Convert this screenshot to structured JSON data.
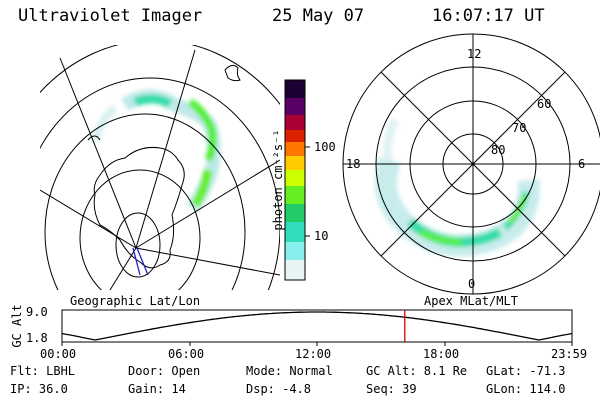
{
  "header": {
    "instrument": "Ultraviolet Imager",
    "date": "25 May 07",
    "time": "16:07:17 UT"
  },
  "colorbar": {
    "label": "photon cm⁻²s⁻¹",
    "ticks": [
      "100",
      "10"
    ],
    "scale": "log",
    "colors": [
      "#1a0033",
      "#5a0066",
      "#aa0033",
      "#dd2200",
      "#ff7700",
      "#ffcc00",
      "#ccff00",
      "#66ee22",
      "#22cc66",
      "#33ddbb",
      "#88eeee",
      "#e8f4f4"
    ]
  },
  "left_map": {
    "label": "Geographic Lat/Lon",
    "auroral_color": "#33dd55"
  },
  "right_map": {
    "label": "Apex MLat/MLT",
    "mlt_labels": [
      "12",
      "18",
      "6",
      "0"
    ],
    "mlat_labels": [
      "60",
      "70",
      "80"
    ]
  },
  "altitude_plot": {
    "ylabel": "GC Alt",
    "y_top": "9.0",
    "y_bottom": "1.8",
    "x_ticks": [
      "00:00",
      "06:00",
      "12:00",
      "18:00",
      "23:59"
    ],
    "current_time_marker": "16:07:17",
    "marker_color": "#cc0000"
  },
  "status": {
    "row1": {
      "flt": "Flt: LBHL",
      "door": "Door: Open",
      "mode": "Mode: Normal",
      "gcalt": "GC Alt: 8.1 Re",
      "glat": "GLat: -71.3"
    },
    "row2": {
      "ip": "IP: 36.0",
      "gain": "Gain: 14",
      "dsp": "Dsp:   -4.8",
      "seq": "Seq: 39",
      "glon": "GLon: 114.0"
    }
  }
}
